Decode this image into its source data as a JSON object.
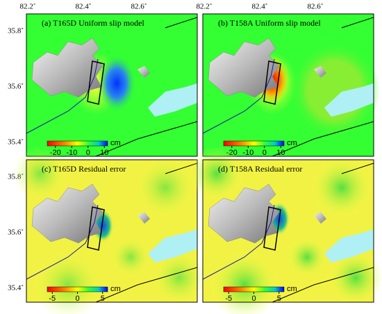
{
  "top_axis_labels": [
    "82.2˚",
    "82.4˚",
    "82.6˚"
  ],
  "left_axis_labels": [
    "35.8˚",
    "35.6˚",
    "35.4˚"
  ],
  "panels": [
    {
      "title": "(a) T165D Uniform slip model",
      "colorbar": {
        "unit": "cm",
        "range": [
          -25,
          12
        ],
        "ticks": [
          -20,
          -10,
          0,
          10
        ]
      }
    },
    {
      "title": "(b) T158A Uniform slip model",
      "colorbar": {
        "unit": "cm",
        "range": [
          -25,
          12
        ],
        "ticks": [
          -20,
          -10,
          0,
          10
        ]
      }
    },
    {
      "title": "(c) T165D Residual error",
      "colorbar": {
        "unit": "cm",
        "range": [
          -6,
          6
        ],
        "ticks": [
          -5,
          0,
          5
        ]
      }
    },
    {
      "title": "(d) T158A Residual error",
      "colorbar": {
        "unit": "cm",
        "range": [
          -6,
          6
        ],
        "ticks": [
          -5,
          0,
          5
        ]
      }
    }
  ]
}
